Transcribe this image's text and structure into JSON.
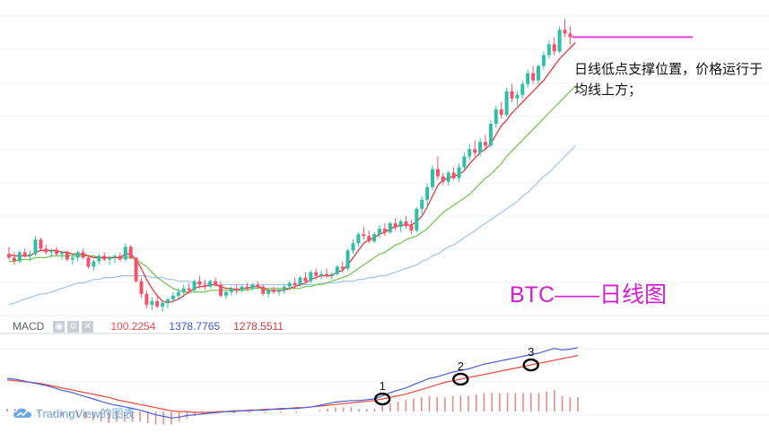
{
  "chart_data": {
    "type": "candlestick",
    "title": "BTC——日线图",
    "annotation": "日线低点支撑位置，价格运行于均线上方；",
    "price_range": [
      0,
      100
    ],
    "candles": [
      [
        74,
        78,
        71,
        72
      ],
      [
        72,
        75,
        68,
        70
      ],
      [
        70,
        76,
        69,
        75
      ],
      [
        75,
        77,
        72,
        73
      ],
      [
        73,
        76,
        70,
        74
      ],
      [
        74,
        84,
        73,
        82
      ],
      [
        82,
        83,
        76,
        77
      ],
      [
        77,
        79,
        74,
        75
      ],
      [
        75,
        77,
        72,
        76
      ],
      [
        76,
        78,
        73,
        74
      ],
      [
        74,
        76,
        71,
        75
      ],
      [
        75,
        76,
        70,
        71
      ],
      [
        71,
        74,
        68,
        72
      ],
      [
        72,
        76,
        70,
        75
      ],
      [
        75,
        77,
        71,
        72
      ],
      [
        72,
        73,
        66,
        67
      ],
      [
        67,
        71,
        65,
        70
      ],
      [
        70,
        74,
        68,
        73
      ],
      [
        73,
        75,
        70,
        71
      ],
      [
        71,
        73,
        68,
        72
      ],
      [
        72,
        74,
        69,
        73
      ],
      [
        73,
        75,
        70,
        71
      ],
      [
        71,
        80,
        70,
        78
      ],
      [
        78,
        79,
        71,
        72
      ],
      [
        72,
        72,
        58,
        59
      ],
      [
        59,
        61,
        50,
        52
      ],
      [
        52,
        54,
        44,
        46
      ],
      [
        46,
        50,
        43,
        48
      ],
      [
        48,
        52,
        44,
        45
      ],
      [
        45,
        48,
        42,
        47
      ],
      [
        47,
        50,
        44,
        49
      ],
      [
        49,
        53,
        47,
        51
      ],
      [
        51,
        55,
        49,
        53
      ],
      [
        53,
        57,
        50,
        55
      ],
      [
        55,
        58,
        52,
        54
      ],
      [
        54,
        60,
        53,
        59
      ],
      [
        59,
        62,
        55,
        57
      ],
      [
        57,
        60,
        54,
        56
      ],
      [
        56,
        60,
        55,
        59
      ],
      [
        59,
        61,
        56,
        57
      ],
      [
        57,
        59,
        50,
        51
      ],
      [
        51,
        54,
        49,
        53
      ],
      [
        53,
        56,
        51,
        55
      ],
      [
        55,
        57,
        52,
        54
      ],
      [
        54,
        57,
        53,
        56
      ],
      [
        56,
        58,
        54,
        55
      ],
      [
        55,
        58,
        54,
        57
      ],
      [
        57,
        59,
        55,
        56
      ],
      [
        56,
        57,
        51,
        52
      ],
      [
        52,
        55,
        50,
        54
      ],
      [
        54,
        56,
        52,
        53
      ],
      [
        53,
        55,
        51,
        54
      ],
      [
        54,
        57,
        52,
        56
      ],
      [
        56,
        59,
        54,
        58
      ],
      [
        58,
        61,
        55,
        57
      ],
      [
        57,
        62,
        56,
        61
      ],
      [
        61,
        64,
        58,
        59
      ],
      [
        59,
        65,
        58,
        64
      ],
      [
        64,
        66,
        60,
        62
      ],
      [
        62,
        65,
        60,
        63
      ],
      [
        63,
        66,
        61,
        62
      ],
      [
        62,
        64,
        60,
        63
      ],
      [
        63,
        68,
        62,
        67
      ],
      [
        67,
        70,
        64,
        66
      ],
      [
        66,
        77,
        65,
        76
      ],
      [
        76,
        82,
        74,
        80
      ],
      [
        80,
        86,
        78,
        85
      ],
      [
        85,
        89,
        82,
        84
      ],
      [
        84,
        87,
        80,
        81
      ],
      [
        81,
        86,
        80,
        85
      ],
      [
        85,
        90,
        83,
        88
      ],
      [
        88,
        91,
        84,
        86
      ],
      [
        86,
        92,
        85,
        91
      ],
      [
        91,
        94,
        87,
        89
      ],
      [
        89,
        93,
        86,
        92
      ],
      [
        92,
        95,
        88,
        90
      ],
      [
        90,
        93,
        85,
        87
      ],
      [
        87,
        100,
        86,
        99
      ],
      [
        99,
        106,
        95,
        104
      ],
      [
        104,
        113,
        100,
        111
      ],
      [
        111,
        123,
        109,
        121
      ],
      [
        121,
        128,
        115,
        117
      ],
      [
        117,
        119,
        112,
        114
      ],
      [
        114,
        120,
        112,
        119
      ],
      [
        119,
        122,
        115,
        116
      ],
      [
        116,
        124,
        114,
        122
      ],
      [
        122,
        130,
        120,
        128
      ],
      [
        128,
        135,
        126,
        132
      ],
      [
        132,
        137,
        128,
        130
      ],
      [
        130,
        138,
        128,
        136
      ],
      [
        136,
        140,
        132,
        134
      ],
      [
        134,
        148,
        133,
        146
      ],
      [
        146,
        156,
        144,
        154
      ],
      [
        154,
        158,
        149,
        151
      ],
      [
        151,
        166,
        150,
        164
      ],
      [
        164,
        168,
        158,
        160
      ],
      [
        160,
        164,
        156,
        162
      ],
      [
        162,
        170,
        160,
        168
      ],
      [
        168,
        176,
        166,
        174
      ],
      [
        174,
        178,
        168,
        170
      ],
      [
        170,
        179,
        168,
        178
      ],
      [
        178,
        186,
        176,
        184
      ],
      [
        184,
        192,
        182,
        190
      ],
      [
        190,
        194,
        184,
        186
      ],
      [
        186,
        200,
        185,
        198
      ],
      [
        198,
        204,
        194,
        196
      ],
      [
        196,
        200,
        190,
        194
      ]
    ],
    "ma_fast": [
      74,
      73,
      73,
      73,
      73,
      75,
      76,
      76,
      76,
      76,
      75,
      75,
      74,
      74,
      74,
      73,
      72,
      72,
      72,
      72,
      72,
      72,
      74,
      74,
      71,
      66,
      60,
      55,
      51,
      48,
      47,
      48,
      49,
      51,
      53,
      55,
      56,
      56,
      57,
      57,
      56,
      55,
      55,
      54,
      55,
      55,
      56,
      56,
      55,
      54,
      54,
      54,
      54,
      55,
      56,
      57,
      58,
      60,
      61,
      62,
      62,
      62,
      64,
      65,
      68,
      72,
      76,
      80,
      82,
      83,
      85,
      86,
      88,
      89,
      90,
      90,
      90,
      92,
      95,
      100,
      106,
      112,
      115,
      116,
      117,
      118,
      120,
      124,
      127,
      130,
      132,
      135,
      140,
      145,
      148,
      152,
      155,
      158,
      161,
      164,
      167,
      170,
      174,
      178,
      182,
      185,
      188,
      191
    ],
    "ma_slow": [
      70,
      70,
      71,
      71,
      71,
      72,
      72,
      72,
      73,
      73,
      73,
      73,
      73,
      73,
      73,
      73,
      73,
      72,
      72,
      72,
      72,
      72,
      72,
      72,
      71,
      69,
      67,
      64,
      61,
      59,
      57,
      55,
      54,
      53,
      53,
      53,
      53,
      53,
      54,
      54,
      54,
      54,
      54,
      54,
      54,
      54,
      55,
      55,
      55,
      55,
      55,
      55,
      55,
      55,
      55,
      55,
      56,
      56,
      57,
      57,
      58,
      59,
      60,
      61,
      62,
      64,
      66,
      68,
      70,
      72,
      74,
      75,
      77,
      79,
      80,
      82,
      83,
      84,
      86,
      88,
      91,
      94,
      97,
      99,
      101,
      103,
      105,
      107,
      110,
      113,
      116,
      118,
      121,
      124,
      128,
      131,
      134,
      137,
      140,
      143,
      146,
      149,
      152,
      155,
      158,
      161,
      164,
      167
    ],
    "ma_long": [
      46,
      47,
      48,
      49,
      50,
      51,
      52,
      52,
      53,
      54,
      55,
      56,
      57,
      58,
      58,
      59,
      60,
      60,
      61,
      61,
      61,
      62,
      62,
      62,
      62,
      62,
      62,
      61,
      61,
      61,
      60,
      60,
      59,
      59,
      59,
      58,
      58,
      58,
      57,
      57,
      57,
      57,
      57,
      57,
      57,
      57,
      57,
      57,
      57,
      57,
      57,
      57,
      57,
      57,
      57,
      57,
      57,
      57,
      57,
      58,
      58,
      58,
      58,
      59,
      59,
      59,
      60,
      60,
      61,
      61,
      62,
      62,
      63,
      64,
      65,
      66,
      67,
      68,
      70,
      71,
      73,
      74,
      76,
      78,
      79,
      81,
      83,
      85,
      87,
      89,
      91,
      93,
      95,
      97,
      99,
      101,
      103,
      106,
      108,
      111,
      114,
      117,
      119,
      122,
      125,
      128,
      131,
      134
    ],
    "macd_line": [
      60,
      59,
      57,
      55,
      53,
      51,
      48,
      45,
      43,
      40,
      37,
      34,
      31,
      28,
      26,
      24,
      22,
      20,
      17,
      14,
      12,
      10,
      11,
      13,
      14,
      15,
      16,
      17,
      18,
      18,
      19,
      19,
      20,
      20,
      21,
      21,
      22,
      22,
      23,
      24,
      26,
      28,
      30,
      31,
      32,
      32,
      33,
      34,
      38,
      42,
      45,
      48,
      52,
      56,
      60,
      62,
      65,
      68,
      70,
      72,
      75,
      78,
      80,
      82,
      84,
      86,
      88,
      90,
      92,
      95,
      98,
      96,
      97,
      99
    ],
    "signal_line": [
      58,
      57,
      56,
      55,
      54,
      52,
      50,
      48,
      46,
      44,
      42,
      40,
      38,
      36,
      33,
      31,
      29,
      27,
      25,
      23,
      21,
      19,
      18,
      18,
      17,
      17,
      17,
      18,
      18,
      19,
      19,
      20,
      20,
      21,
      21,
      22,
      22,
      23,
      23,
      24,
      25,
      26,
      27,
      28,
      29,
      30,
      31,
      32,
      34,
      36,
      38,
      40,
      43,
      46,
      49,
      52,
      55,
      57,
      59,
      61,
      63,
      65,
      67,
      69,
      71,
      73,
      75,
      77,
      79,
      81,
      83,
      85,
      87,
      89
    ],
    "macd_legend": {
      "label": "MACD",
      "values": [
        "100.2254",
        "1378.7765",
        "1278.5511"
      ]
    },
    "markers": [
      "1",
      "2",
      "3"
    ],
    "colors": {
      "up": "#2fbfa5",
      "down": "#f0536b",
      "ma_fast": "#e8262d",
      "ma_slow": "#6cc44a",
      "ma_long": "#9cc4f0",
      "macd": "#4a5fd8",
      "signal": "#e84a3a",
      "hist": "#e88a8a",
      "title": "#d11fd1"
    }
  },
  "watermark": {
    "text": "TradingView的图表"
  }
}
